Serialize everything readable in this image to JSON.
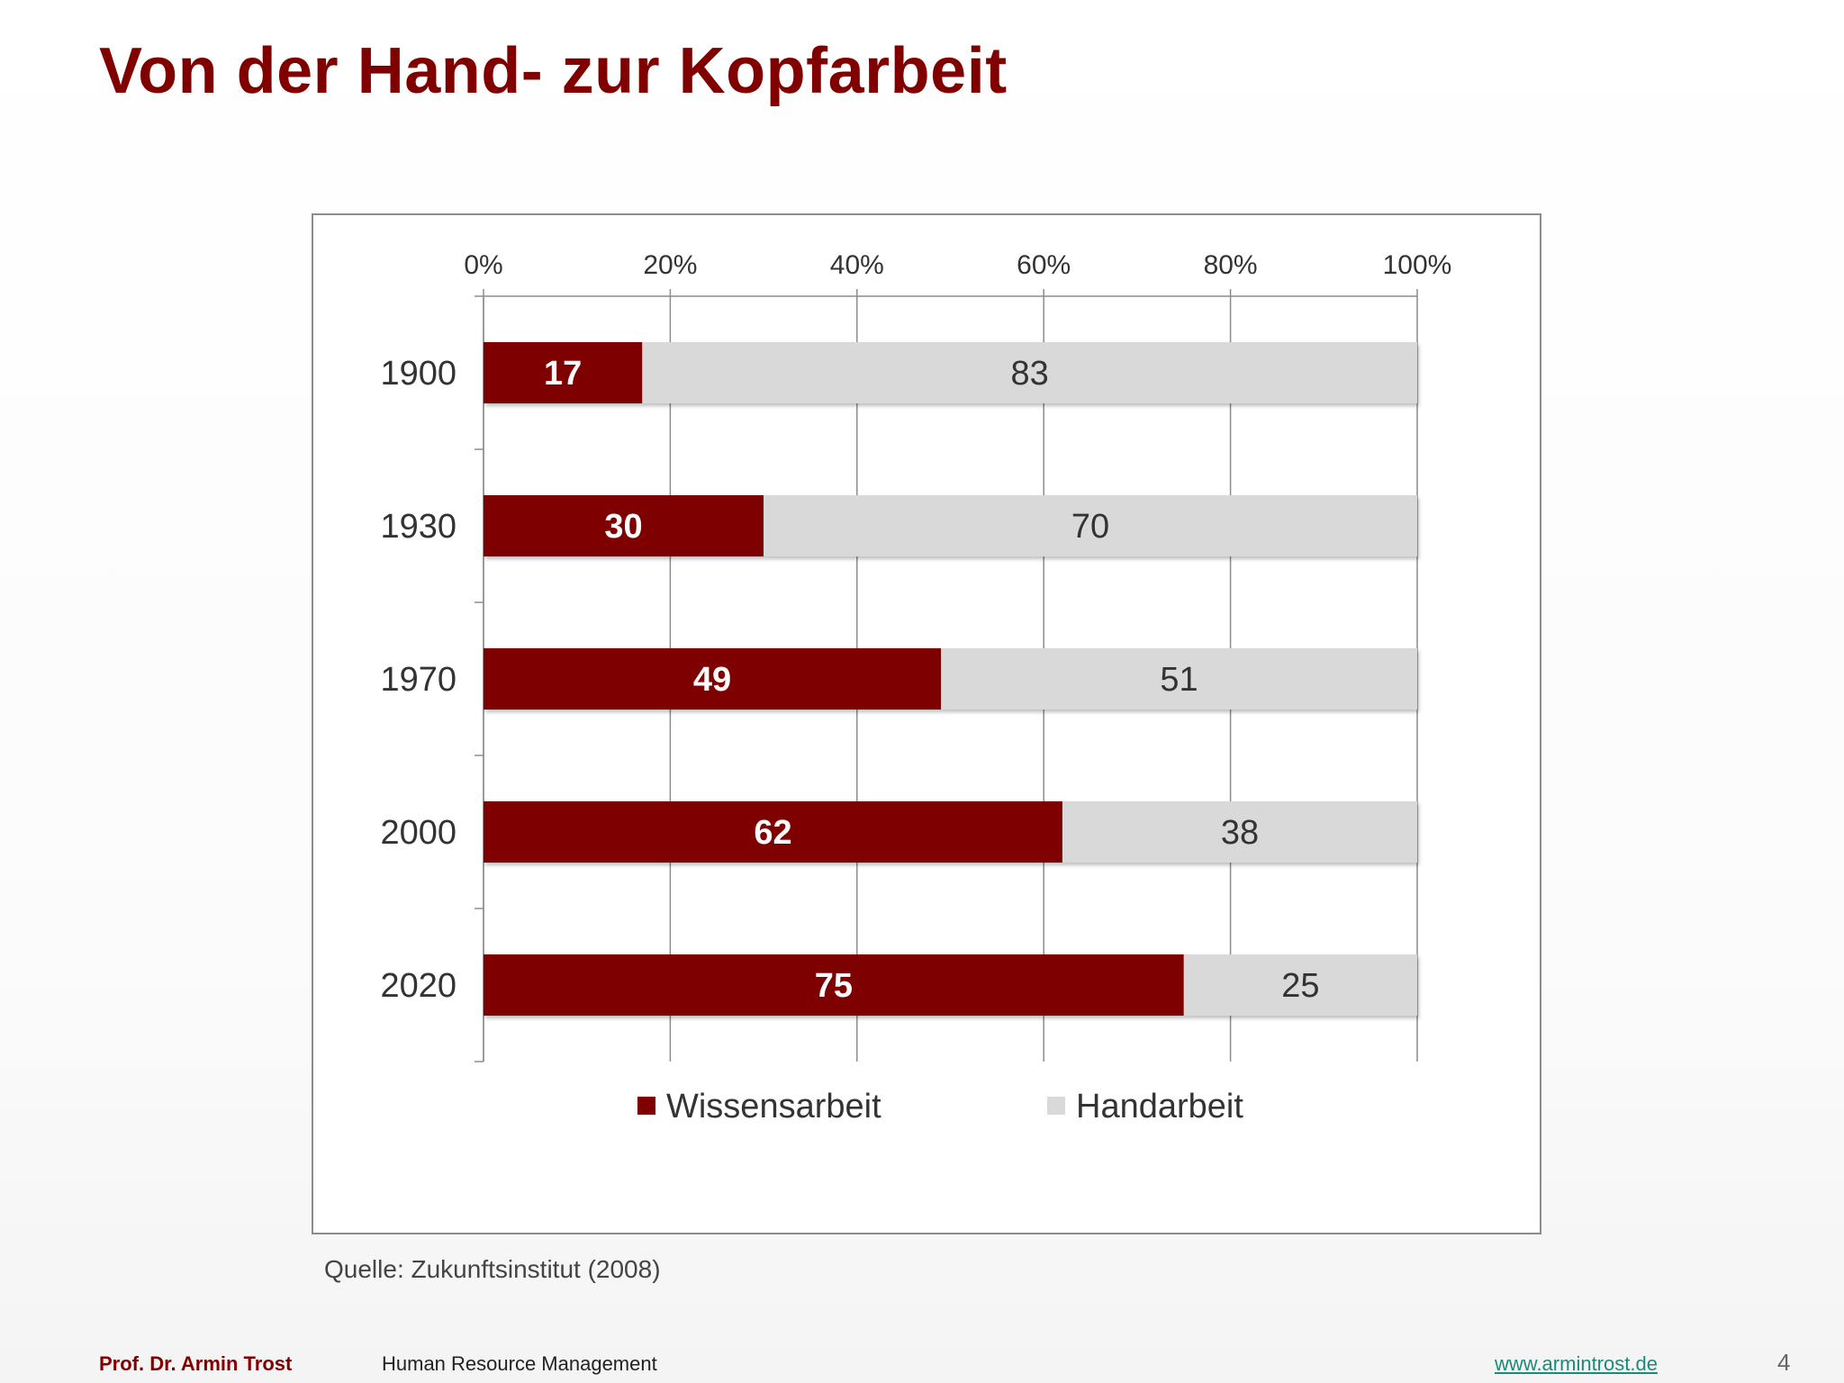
{
  "slide": {
    "title": "Von der Hand- zur Kopfarbeit",
    "source": "Quelle: Zukunftsinstitut (2008)",
    "footer": {
      "author": "Prof. Dr. Armin Trost",
      "course": "Human Resource Management",
      "website": "www.armintrost.de",
      "page_number": "4"
    }
  },
  "chart_data": {
    "type": "bar",
    "orientation": "horizontal",
    "stacked": "percent",
    "categories": [
      "1900",
      "1930",
      "1970",
      "2000",
      "2020"
    ],
    "series": [
      {
        "name": "Wissensarbeit",
        "color": "#7f0000",
        "label_color": "#ffffff",
        "label_weight": "bold",
        "values": [
          17,
          30,
          49,
          62,
          75
        ]
      },
      {
        "name": "Handarbeit",
        "color": "#d9d9d9",
        "label_color": "#333333",
        "label_weight": "normal",
        "values": [
          83,
          70,
          51,
          38,
          25
        ]
      }
    ],
    "xlim": [
      0,
      100
    ],
    "x_ticks": [
      "0%",
      "20%",
      "40%",
      "60%",
      "80%",
      "100%"
    ],
    "x_axis_position": "top",
    "grid": true,
    "legend": "bottom",
    "title": "",
    "xlabel": "",
    "ylabel": ""
  }
}
